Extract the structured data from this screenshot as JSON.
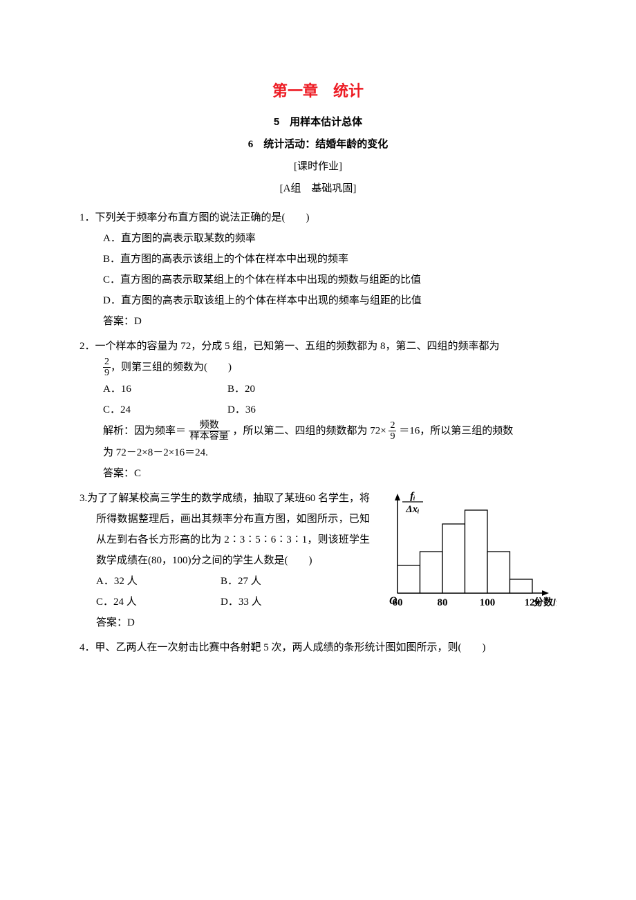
{
  "title": "第一章　统计",
  "subtitle": "5　用样本估计总体",
  "subtitle2": "6　统计活动：结婚年龄的变化",
  "header_a": "[课时作业]",
  "header_b": "[A组　基础巩固]",
  "colors": {
    "title": "#ed1c24",
    "text": "#000000",
    "bg": "#ffffff"
  },
  "q1": {
    "stem": "1．下列关于频率分布直方图的说法正确的是(　　)",
    "optA": "A．直方图的高表示取某数的频率",
    "optB": "B．直方图的高表示该组上的个体在样本中出现的频率",
    "optC": "C．直方图的高表示取某组上的个体在样本中出现的频数与组距的比值",
    "optD": "D．直方图的高表示取该组上的个体在样本中出现的频率与组距的比值",
    "ans": "答案：D"
  },
  "q2": {
    "stem_a": "2．一个样本的容量为 72，分成 5 组，已知第一、五组的频数都为 8，第二、四组的频率都为",
    "frac1_num": "2",
    "frac1_den": "9",
    "stem_b": "，则第三组的频数为(　　)",
    "optA": "A．16",
    "optB": "B．20",
    "optC": "C．24",
    "optD": "D．36",
    "expl_a": "解析：因为频率＝",
    "expl_frac_num": "频数",
    "expl_frac_den": "样本容量",
    "expl_b": "，所以第二、四组的频数都为 72×",
    "expl_frac2_num": "2",
    "expl_frac2_den": "9",
    "expl_c": "＝16，所以第三组的频数",
    "expl_d": "为 72－2×8－2×16＝24.",
    "ans": "答案：C"
  },
  "q3": {
    "stem": "3.为了了解某校高三学生的数学成绩，抽取了某班60 名学生，将所得数据整理后，画出其频率分布直方图，如图所示，已知从左到右各长方形高的比为 2∶3∶5∶6∶3∶1，则该班学生数学成绩在(80，100)分之间的学生人数是(　　)",
    "optA": "A．32 人",
    "optB": "B．27 人",
    "optC": "C．24 人",
    "optD": "D．33 人",
    "ans": "答案：D",
    "fig": {
      "type": "histogram",
      "ylabel_frac_num": "fᵢ",
      "ylabel_frac_den": "Δxᵢ",
      "xlabel": "分数/分",
      "xticks": [
        60,
        80,
        100,
        120
      ],
      "bar_ratios": [
        2,
        3,
        5,
        6,
        3,
        1
      ],
      "bin_edges": [
        60,
        70,
        80,
        90,
        100,
        110,
        120
      ],
      "bar_fill": "#ffffff",
      "bar_stroke": "#000000",
      "axis_color": "#000000",
      "font_style": "italic"
    }
  },
  "q4": {
    "stem": "4．甲、乙两人在一次射击比赛中各射靶 5 次，两人成绩的条形统计图如图所示，则(　　)"
  },
  "fonts": {
    "body_size_pt": 11,
    "title_size_pt": 16,
    "family_body": "SimSun",
    "family_title": "SimHei",
    "family_explain": "KaiTi"
  }
}
